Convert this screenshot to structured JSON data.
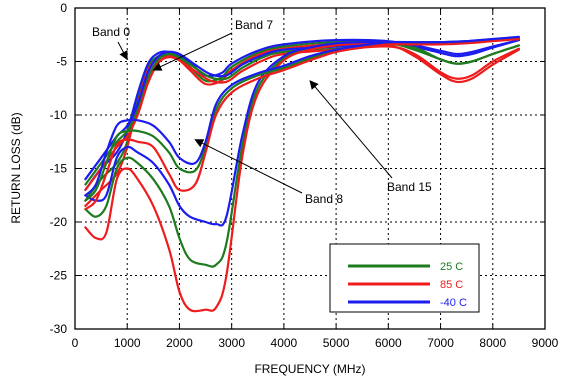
{
  "chart_data": {
    "type": "line",
    "title": "",
    "xlabel": "FREQUENCY (MHz)",
    "ylabel": "RETURN LOSS (dB)",
    "xlim": [
      0,
      9000
    ],
    "ylim": [
      -30,
      0
    ],
    "xticks": [
      0,
      1000,
      2000,
      3000,
      4000,
      5000,
      6000,
      7000,
      8000,
      9000
    ],
    "yticks": [
      0,
      -5,
      -10,
      -15,
      -20,
      -25,
      -30
    ],
    "grid": true,
    "legend_position": "bottom-right",
    "legend": [
      {
        "label": "25 C",
        "color": "#1e7b1e"
      },
      {
        "label": "85 C",
        "color": "#ee1c1c"
      },
      {
        "label": "-40 C",
        "color": "#1c1cee"
      }
    ],
    "annotations": [
      {
        "text": "Band 0",
        "x": 1000,
        "y": -4.8
      },
      {
        "text": "Band 7",
        "x": 1500,
        "y": -5.8
      },
      {
        "text": "Band 8",
        "x": 2300,
        "y": -12.3
      },
      {
        "text": "Band 15",
        "x": 4500,
        "y": -6.8
      }
    ],
    "series": [
      {
        "band": "Band 0",
        "temp": "25 C",
        "color": "#1e7b1e",
        "x": [
          200,
          500,
          800,
          1000,
          1200,
          1400,
          1600,
          1800,
          2000,
          2200,
          2500,
          2800,
          3000,
          3500,
          4000,
          5000,
          6000,
          6500,
          7000,
          7300,
          7600,
          8000,
          8500
        ],
        "y": [
          -18,
          -16,
          -14.5,
          -12.5,
          -8.5,
          -5.5,
          -4.5,
          -4.4,
          -4.7,
          -5.5,
          -6.8,
          -6.5,
          -5.5,
          -4.2,
          -3.6,
          -3.2,
          -3.3,
          -3.9,
          -4.8,
          -5.2,
          -5,
          -4.3,
          -3.5
        ]
      },
      {
        "band": "Band 0",
        "temp": "85 C",
        "color": "#ee1c1c",
        "x": [
          200,
          500,
          800,
          1000,
          1200,
          1400,
          1600,
          1800,
          2000,
          2200,
          2500,
          2800,
          3000,
          3500,
          4000,
          5000,
          6000,
          6500,
          7000,
          7300,
          7600,
          8000,
          8500
        ],
        "y": [
          -18.5,
          -17,
          -15.5,
          -13,
          -9,
          -5.8,
          -4.7,
          -4.5,
          -4.9,
          -5.8,
          -7.1,
          -6.8,
          -5.8,
          -4.4,
          -3.8,
          -3.4,
          -3.5,
          -4.5,
          -6.2,
          -6.9,
          -6.6,
          -5.3,
          -3.9
        ]
      },
      {
        "band": "Band 0",
        "temp": "-40 C",
        "color": "#1c1cee",
        "x": [
          200,
          500,
          800,
          1000,
          1200,
          1400,
          1600,
          1800,
          2000,
          2200,
          2500,
          2800,
          3000,
          3500,
          4000,
          5000,
          6000,
          6500,
          7000,
          7300,
          7600,
          8000,
          8500
        ],
        "y": [
          -17,
          -15,
          -13.5,
          -11.5,
          -8,
          -5.2,
          -4.2,
          -4.1,
          -4.4,
          -5.1,
          -6.3,
          -6.1,
          -5.2,
          -4,
          -3.4,
          -3,
          -3.1,
          -3.6,
          -4.2,
          -4.5,
          -4.3,
          -3.7,
          -3
        ]
      },
      {
        "band": "Band 7",
        "temp": "25 C",
        "color": "#1e7b1e",
        "x": [
          200,
          500,
          800,
          1000,
          1200,
          1400,
          1600,
          1800,
          2000,
          2300,
          2600,
          2900,
          3200,
          3600,
          4000,
          5000,
          6000,
          6500,
          7000,
          7300,
          7600,
          8000,
          8500
        ],
        "y": [
          -16.5,
          -14.5,
          -12.5,
          -11.5,
          -9.5,
          -6.5,
          -4.8,
          -4.3,
          -4.6,
          -5.6,
          -6.5,
          -6.6,
          -5.6,
          -4.6,
          -4.1,
          -3.8,
          -3.4,
          -3.7,
          -4.8,
          -5.2,
          -5,
          -4.3,
          -3.5
        ]
      },
      {
        "band": "Band 7",
        "temp": "85 C",
        "color": "#ee1c1c",
        "x": [
          200,
          500,
          800,
          1000,
          1200,
          1400,
          1600,
          1800,
          2000,
          2300,
          2600,
          2900,
          3200,
          3600,
          4000,
          5000,
          6000,
          6500,
          7000,
          7300,
          7600,
          8000,
          8500
        ],
        "y": [
          -17,
          -15,
          -13,
          -12,
          -10,
          -7,
          -5.1,
          -4.6,
          -4.9,
          -5.9,
          -6.8,
          -6.9,
          -5.9,
          -4.9,
          -4.3,
          -3.9,
          -3.6,
          -4.3,
          -6,
          -6.6,
          -6.3,
          -5,
          -3.8
        ]
      },
      {
        "band": "Band 7",
        "temp": "-40 C",
        "color": "#1c1cee",
        "x": [
          200,
          500,
          800,
          1000,
          1200,
          1400,
          1600,
          1800,
          2000,
          2300,
          2600,
          2900,
          3200,
          3600,
          4000,
          5000,
          6000,
          6500,
          7000,
          7300,
          7600,
          8000,
          8500
        ],
        "y": [
          -16,
          -14,
          -12,
          -11,
          -9,
          -6,
          -4.5,
          -4.1,
          -4.3,
          -5.3,
          -6.2,
          -6.3,
          -5.3,
          -4.4,
          -3.9,
          -3.6,
          -3.3,
          -3.5,
          -4,
          -4.3,
          -4.1,
          -3.6,
          -3
        ]
      },
      {
        "band": "Band 8",
        "temp": "25 C",
        "color": "#1e7b1e",
        "x": [
          200,
          400,
          600,
          800,
          1000,
          1200,
          1500,
          1800,
          2000,
          2200,
          2500,
          2700,
          2900,
          3200,
          3500,
          4000,
          4500,
          5000,
          5500,
          6000,
          6500,
          7000,
          7500,
          8000,
          8500
        ],
        "y": [
          -18.8,
          -19.5,
          -18.5,
          -15,
          -14,
          -14.5,
          -16,
          -18.5,
          -21.5,
          -23.5,
          -24,
          -24,
          -22,
          -13,
          -7.5,
          -4.7,
          -3.8,
          -3.4,
          -3.2,
          -3.2,
          -3.2,
          -3.2,
          -3.1,
          -3,
          -2.8
        ]
      },
      {
        "band": "Band 8",
        "temp": "85 C",
        "color": "#ee1c1c",
        "x": [
          200,
          400,
          600,
          800,
          1000,
          1200,
          1500,
          1800,
          2000,
          2200,
          2500,
          2700,
          2900,
          3200,
          3500,
          4000,
          4500,
          5000,
          5500,
          6000,
          6500,
          7000,
          7500,
          8000,
          8500
        ],
        "y": [
          -20.5,
          -21.5,
          -21,
          -16,
          -15,
          -16,
          -18.5,
          -22.5,
          -26.5,
          -28.2,
          -28.2,
          -28,
          -25,
          -14,
          -8,
          -4.9,
          -3.9,
          -3.5,
          -3.3,
          -3.2,
          -3.3,
          -3.3,
          -3.2,
          -3,
          -2.9
        ]
      },
      {
        "band": "Band 8",
        "temp": "-40 C",
        "color": "#1c1cee",
        "x": [
          200,
          400,
          600,
          800,
          1000,
          1200,
          1500,
          1800,
          2000,
          2200,
          2500,
          2700,
          2900,
          3200,
          3500,
          4000,
          4500,
          5000,
          5500,
          6000,
          6500,
          7000,
          7500,
          8000,
          8500
        ],
        "y": [
          -17.5,
          -18,
          -17.5,
          -14,
          -13,
          -13.5,
          -14.5,
          -16.5,
          -18.5,
          -19.5,
          -20,
          -20.2,
          -19.5,
          -12,
          -7,
          -4.5,
          -3.7,
          -3.3,
          -3.2,
          -3.2,
          -3.2,
          -3.2,
          -3.1,
          -3,
          -2.8
        ]
      },
      {
        "band": "Band 15",
        "temp": "25 C",
        "color": "#1e7b1e",
        "x": [
          200,
          400,
          600,
          800,
          1000,
          1200,
          1500,
          1800,
          2000,
          2300,
          2500,
          2700,
          3000,
          3500,
          4000,
          4500,
          5000,
          5500,
          6000,
          6500,
          7000,
          7500,
          8000,
          8500
        ],
        "y": [
          -18,
          -17,
          -14.5,
          -12,
          -11.5,
          -11.5,
          -12,
          -13.5,
          -15,
          -15.2,
          -13,
          -9.5,
          -7.5,
          -6.3,
          -5.6,
          -4.7,
          -4,
          -3.6,
          -3.3,
          -3.3,
          -3.3,
          -3.2,
          -3,
          -2.8
        ]
      },
      {
        "band": "Band 15",
        "temp": "85 C",
        "color": "#ee1c1c",
        "x": [
          200,
          400,
          600,
          800,
          1000,
          1200,
          1500,
          1800,
          2000,
          2300,
          2500,
          2700,
          3000,
          3500,
          4000,
          4500,
          5000,
          5500,
          6000,
          6500,
          7000,
          7500,
          8000,
          8500
        ],
        "y": [
          -18.8,
          -18,
          -15.5,
          -12.8,
          -12.3,
          -12.5,
          -13,
          -15.5,
          -17,
          -16.5,
          -13.5,
          -10,
          -7.9,
          -6.6,
          -5.8,
          -4.9,
          -4.1,
          -3.7,
          -3.4,
          -3.4,
          -3.4,
          -3.3,
          -3.1,
          -2.9
        ]
      },
      {
        "band": "Band 15",
        "temp": "-40 C",
        "color": "#1c1cee",
        "x": [
          200,
          400,
          600,
          800,
          1000,
          1200,
          1500,
          1800,
          2000,
          2300,
          2500,
          2700,
          3000,
          3500,
          4000,
          4500,
          5000,
          5500,
          6000,
          6500,
          7000,
          7500,
          8000,
          8500
        ],
        "y": [
          -17.5,
          -16.5,
          -13.5,
          -11,
          -10.5,
          -10.5,
          -11,
          -12.5,
          -14,
          -14.5,
          -12.5,
          -9,
          -7.2,
          -6.1,
          -5.4,
          -4.5,
          -3.9,
          -3.5,
          -3.2,
          -3.2,
          -3.2,
          -3.1,
          -2.9,
          -2.7
        ]
      }
    ]
  }
}
